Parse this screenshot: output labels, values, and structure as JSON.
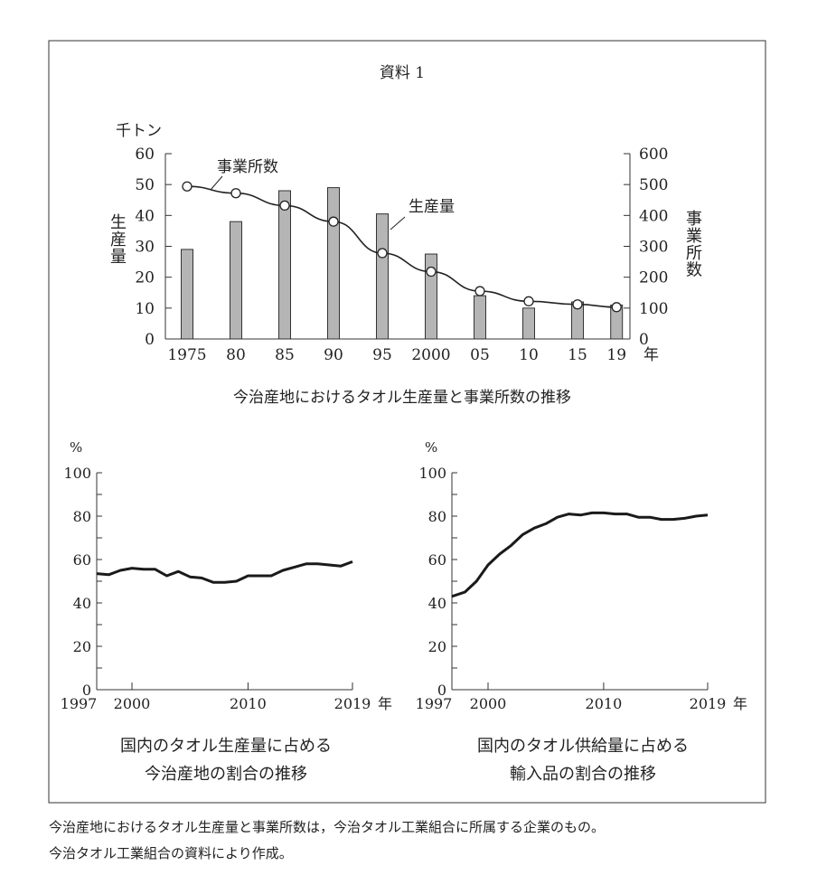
{
  "title": "資料 1",
  "footnotes": [
    "今治産地におけるタオル生産量と事業所数は，今治タオル工業組合に所属する企業のもの。",
    "今治タオル工業組合の資料により作成。"
  ],
  "chart_data": [
    {
      "type": "bar+line",
      "title": "今治産地におけるタオル生産量と事業所数の推移",
      "categories": [
        "1975",
        "80",
        "85",
        "90",
        "95",
        "2000",
        "05",
        "10",
        "15",
        "19"
      ],
      "x_unit": "年",
      "years": [
        1975,
        1980,
        1985,
        1990,
        1995,
        2000,
        2005,
        2010,
        2015,
        2019
      ],
      "left_axis": {
        "label": "生産量",
        "unit": "千トン",
        "ylim": [
          0,
          60
        ],
        "ticks": [
          0,
          10,
          20,
          30,
          40,
          50,
          60
        ]
      },
      "right_axis": {
        "label": "事業所数",
        "ylim": [
          0,
          600
        ],
        "ticks": [
          0,
          100,
          200,
          300,
          400,
          500,
          600
        ]
      },
      "series": [
        {
          "name": "生産量",
          "type": "bar",
          "axis": "left",
          "color": "#b5b5b5",
          "values": [
            29,
            38,
            48,
            49,
            40.5,
            27.5,
            14,
            10,
            12,
            11
          ]
        },
        {
          "name": "事業所数",
          "type": "line",
          "axis": "right",
          "marker": "open-circle",
          "values": [
            494,
            472,
            432,
            380,
            278,
            218,
            155,
            122,
            112,
            103
          ]
        }
      ],
      "grid": false
    },
    {
      "type": "line",
      "title_lines": [
        "国内のタオル生産量に占める",
        "今治産地の割合の推移"
      ],
      "ylabel": "%",
      "x_unit": "年",
      "ylim": [
        0,
        100
      ],
      "yticks": [
        0,
        20,
        40,
        60,
        80,
        100
      ],
      "xticks": [
        1997,
        2000,
        2010,
        2019
      ],
      "x": [
        1997,
        1998,
        1999,
        2000,
        2001,
        2002,
        2003,
        2004,
        2005,
        2006,
        2007,
        2008,
        2009,
        2010,
        2011,
        2012,
        2013,
        2014,
        2015,
        2016,
        2017,
        2018,
        2019
      ],
      "values": [
        53.5,
        53,
        55,
        56,
        55.5,
        55.5,
        52.5,
        54.5,
        52,
        51.5,
        49.5,
        49.5,
        50,
        52.5,
        52.5,
        52.5,
        55,
        56.5,
        58,
        58,
        57.5,
        57,
        59
      ],
      "grid": false
    },
    {
      "type": "line",
      "title_lines": [
        "国内のタオル供給量に占める",
        "輸入品の割合の推移"
      ],
      "ylabel": "%",
      "x_unit": "年",
      "ylim": [
        0,
        100
      ],
      "yticks": [
        0,
        20,
        40,
        60,
        80,
        100
      ],
      "xticks": [
        1997,
        2000,
        2010,
        2019
      ],
      "x": [
        1997,
        1998,
        1999,
        2000,
        2001,
        2002,
        2003,
        2004,
        2005,
        2006,
        2007,
        2008,
        2009,
        2010,
        2011,
        2012,
        2013,
        2014,
        2015,
        2016,
        2017,
        2018,
        2019
      ],
      "values": [
        43,
        45,
        50,
        57.5,
        62.5,
        66.5,
        71.5,
        74.5,
        76.5,
        79.5,
        81,
        80.5,
        81.5,
        81.5,
        81,
        81,
        79.5,
        79.5,
        78.5,
        78.5,
        79,
        80,
        80.5
      ],
      "grid": false
    }
  ]
}
